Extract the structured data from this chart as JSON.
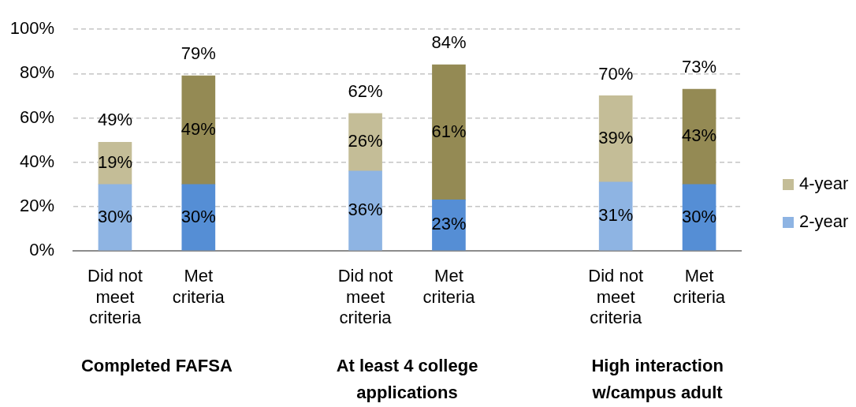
{
  "chart_data": {
    "type": "bar",
    "stacked": true,
    "categories": [
      "Did not meet criteria",
      "Met criteria",
      null,
      "Did not meet criteria",
      "Met criteria",
      null,
      "Did not meet criteria",
      "Met criteria"
    ],
    "series": [
      {
        "name": "2-year",
        "color": "#8eb4e3",
        "colors": [
          "#8eb4e3",
          "#558ed5",
          null,
          "#8eb4e3",
          "#558ed5",
          null,
          "#8eb4e3",
          "#558ed5"
        ],
        "values": [
          30,
          30,
          null,
          36,
          23,
          null,
          31,
          30
        ],
        "value_labels": [
          "30%",
          "30%",
          null,
          "36%",
          "23%",
          null,
          "31%",
          "30%"
        ]
      },
      {
        "name": "4-year",
        "color": "#c4bd97",
        "colors": [
          "#c4bd97",
          "#948a54",
          null,
          "#c4bd97",
          "#948a54",
          null,
          "#c4bd97",
          "#948a54"
        ],
        "values": [
          19,
          49,
          null,
          26,
          61,
          null,
          39,
          43
        ],
        "value_labels": [
          "19%",
          "49%",
          null,
          "26%",
          "61%",
          null,
          "39%",
          "43%"
        ]
      }
    ],
    "totals": [
      "49%",
      "79%",
      null,
      "62%",
      "84%",
      null,
      "70%",
      "73%"
    ],
    "ylim": [
      0,
      100
    ],
    "yticks": [
      {
        "value": 0,
        "label": "0%"
      },
      {
        "value": 20,
        "label": "20%"
      },
      {
        "value": 40,
        "label": "40%"
      },
      {
        "value": 60,
        "label": "60%"
      },
      {
        "value": 80,
        "label": "80%"
      },
      {
        "value": 100,
        "label": "100%"
      }
    ],
    "grid": "y",
    "legend": "right",
    "annotations": [
      "Completed FAFSA",
      "At least 4 college applications",
      "High interaction w/campus adult"
    ]
  }
}
